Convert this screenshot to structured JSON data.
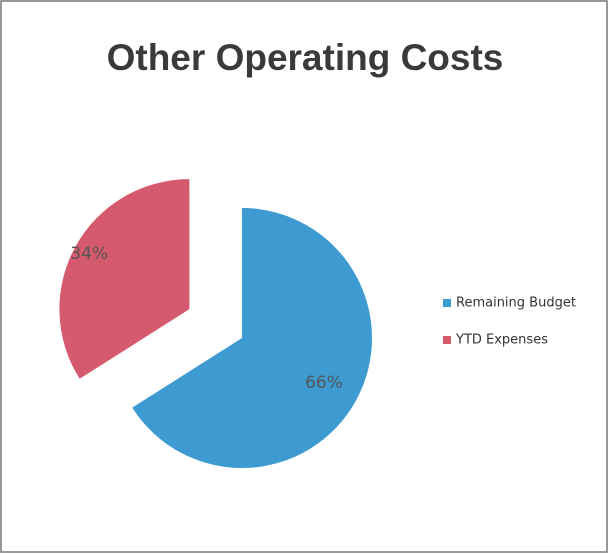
{
  "chart_data": {
    "type": "pie",
    "title": "Other Operating Costs",
    "categories": [
      "Remaining Budget",
      "YTD Expenses"
    ],
    "values": [
      66,
      34
    ],
    "value_labels": [
      "66%",
      "34%"
    ],
    "colors": [
      "#3d9bd2",
      "#d65a6d"
    ],
    "exploded": true,
    "legend": "right"
  }
}
